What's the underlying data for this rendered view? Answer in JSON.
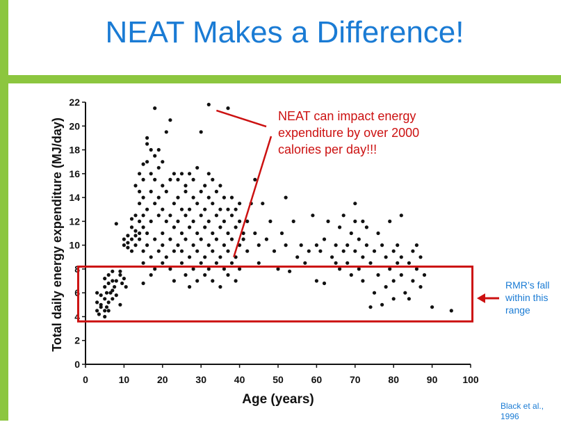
{
  "slide": {
    "title": "NEAT Makes a Difference!",
    "accent_color": "#8cc63f",
    "title_color": "#1a7bd4",
    "annotation_color": "#cc1111",
    "callout": "NEAT can impact energy expenditure by over 2000 calories per day!!!",
    "rmr_note": "RMR’s fall within this range",
    "citation": "Black et al., 1996",
    "arrow_icon": "left-arrow-icon"
  },
  "chart_data": {
    "type": "scatter",
    "title": "",
    "xlabel": "Age (years)",
    "ylabel": "Total daily energy expenditure (MJ/day)",
    "xlim": [
      0,
      100
    ],
    "ylim": [
      0,
      22
    ],
    "xticks": [
      0,
      10,
      20,
      30,
      40,
      50,
      60,
      70,
      80,
      90,
      100
    ],
    "yticks": [
      0,
      2,
      4,
      6,
      8,
      10,
      12,
      14,
      16,
      18,
      20,
      22
    ],
    "grid": false,
    "highlight_band": {
      "y_range": [
        3.6,
        8.2
      ],
      "x_range": [
        -1,
        101
      ],
      "label": "RMR range"
    },
    "points": [
      [
        3,
        4.5
      ],
      [
        3,
        5.2
      ],
      [
        3,
        6.0
      ],
      [
        3.5,
        4.2
      ],
      [
        4,
        5.0
      ],
      [
        4,
        5.8
      ],
      [
        4,
        4.8
      ],
      [
        5,
        4.0
      ],
      [
        5,
        4.5
      ],
      [
        5,
        5.5
      ],
      [
        5,
        6.5
      ],
      [
        5,
        7.2
      ],
      [
        5.5,
        4.8
      ],
      [
        5.5,
        6.0
      ],
      [
        6,
        5.2
      ],
      [
        6,
        6.8
      ],
      [
        6,
        7.5
      ],
      [
        6,
        4.5
      ],
      [
        6.5,
        6.0
      ],
      [
        7,
        5.5
      ],
      [
        7,
        7.0
      ],
      [
        7,
        7.8
      ],
      [
        7,
        6.2
      ],
      [
        7.5,
        6.5
      ],
      [
        8,
        7.0
      ],
      [
        8,
        5.8
      ],
      [
        8,
        11.8
      ],
      [
        9,
        5.0
      ],
      [
        9,
        7.5
      ],
      [
        9,
        7.8
      ],
      [
        9.5,
        6.8
      ],
      [
        10,
        7.2
      ],
      [
        10,
        10.5
      ],
      [
        10,
        10.0
      ],
      [
        10.5,
        6.5
      ],
      [
        11,
        10.2
      ],
      [
        11,
        10.8
      ],
      [
        11,
        9.8
      ],
      [
        12,
        10.5
      ],
      [
        12,
        11.5
      ],
      [
        12,
        12.2
      ],
      [
        12,
        9.5
      ],
      [
        13,
        10.8
      ],
      [
        13,
        11.2
      ],
      [
        13,
        12.5
      ],
      [
        13,
        15.0
      ],
      [
        13,
        10.0
      ],
      [
        14,
        11.0
      ],
      [
        14,
        12.0
      ],
      [
        14,
        13.5
      ],
      [
        14,
        14.5
      ],
      [
        14,
        16.0
      ],
      [
        14,
        10.5
      ],
      [
        15,
        11.5
      ],
      [
        15,
        12.5
      ],
      [
        15,
        14.0
      ],
      [
        15,
        15.5
      ],
      [
        15,
        16.8
      ],
      [
        15,
        9.5
      ],
      [
        15,
        8.5
      ],
      [
        15,
        6.8
      ],
      [
        16,
        13.0
      ],
      [
        16,
        17.0
      ],
      [
        16,
        18.5
      ],
      [
        16,
        19.0
      ],
      [
        16,
        11.0
      ],
      [
        16,
        10.0
      ],
      [
        17,
        12.0
      ],
      [
        17,
        14.5
      ],
      [
        17,
        16.0
      ],
      [
        17,
        18.0
      ],
      [
        17,
        9.0
      ],
      [
        17,
        7.5
      ],
      [
        18,
        13.5
      ],
      [
        18,
        15.5
      ],
      [
        18,
        17.5
      ],
      [
        18,
        21.5
      ],
      [
        18,
        10.5
      ],
      [
        18,
        8.0
      ],
      [
        19,
        12.5
      ],
      [
        19,
        14.0
      ],
      [
        19,
        16.5
      ],
      [
        19,
        18.0
      ],
      [
        19,
        9.5
      ],
      [
        20,
        11.0
      ],
      [
        20,
        13.0
      ],
      [
        20,
        15.0
      ],
      [
        20,
        17.0
      ],
      [
        20,
        8.5
      ],
      [
        20,
        10.0
      ],
      [
        21,
        12.0
      ],
      [
        21,
        14.5
      ],
      [
        21,
        19.5
      ],
      [
        21,
        9.0
      ],
      [
        22,
        12.5
      ],
      [
        22,
        15.5
      ],
      [
        22,
        20.5
      ],
      [
        22,
        10.5
      ],
      [
        22,
        8.0
      ],
      [
        23,
        11.5
      ],
      [
        23,
        13.5
      ],
      [
        23,
        16.0
      ],
      [
        23,
        9.5
      ],
      [
        23,
        7.0
      ],
      [
        24,
        12.0
      ],
      [
        24,
        14.0
      ],
      [
        24,
        15.5
      ],
      [
        24,
        10.0
      ],
      [
        25,
        11.0
      ],
      [
        25,
        13.0
      ],
      [
        25,
        16.0
      ],
      [
        25,
        8.5
      ],
      [
        25,
        9.5
      ],
      [
        26,
        12.5
      ],
      [
        26,
        14.5
      ],
      [
        26,
        15.0
      ],
      [
        26,
        10.5
      ],
      [
        26,
        7.5
      ],
      [
        27,
        11.5
      ],
      [
        27,
        13.0
      ],
      [
        27,
        16.0
      ],
      [
        27,
        9.0
      ],
      [
        27,
        6.5
      ],
      [
        28,
        12.0
      ],
      [
        28,
        14.0
      ],
      [
        28,
        15.5
      ],
      [
        28,
        10.0
      ],
      [
        28,
        8.0
      ],
      [
        29,
        11.0
      ],
      [
        29,
        13.5
      ],
      [
        29,
        16.5
      ],
      [
        29,
        9.5
      ],
      [
        29,
        7.0
      ],
      [
        30,
        12.5
      ],
      [
        30,
        14.5
      ],
      [
        30,
        19.5
      ],
      [
        30,
        10.5
      ],
      [
        30,
        8.5
      ],
      [
        31,
        11.5
      ],
      [
        31,
        13.0
      ],
      [
        31,
        15.0
      ],
      [
        31,
        9.0
      ],
      [
        31,
        7.5
      ],
      [
        32,
        12.0
      ],
      [
        32,
        14.0
      ],
      [
        32,
        16.0
      ],
      [
        32,
        10.0
      ],
      [
        32,
        8.0
      ],
      [
        32,
        21.8
      ],
      [
        33,
        11.0
      ],
      [
        33,
        13.5
      ],
      [
        33,
        15.5
      ],
      [
        33,
        9.5
      ],
      [
        33,
        7.0
      ],
      [
        34,
        10.5
      ],
      [
        34,
        12.5
      ],
      [
        34,
        14.5
      ],
      [
        34,
        8.5
      ],
      [
        35,
        11.5
      ],
      [
        35,
        13.0
      ],
      [
        35,
        15.0
      ],
      [
        35,
        9.0
      ],
      [
        35,
        6.5
      ],
      [
        36,
        10.0
      ],
      [
        36,
        12.0
      ],
      [
        36,
        14.0
      ],
      [
        36,
        8.0
      ],
      [
        37,
        11.0
      ],
      [
        37,
        13.0
      ],
      [
        37,
        21.5
      ],
      [
        37,
        9.5
      ],
      [
        37,
        7.5
      ],
      [
        38,
        10.5
      ],
      [
        38,
        12.5
      ],
      [
        38,
        14.0
      ],
      [
        38,
        8.5
      ],
      [
        39,
        11.5
      ],
      [
        39,
        13.0
      ],
      [
        39,
        9.0
      ],
      [
        39,
        7.0
      ],
      [
        40,
        10.0
      ],
      [
        40,
        12.0
      ],
      [
        40,
        13.5
      ],
      [
        40,
        8.0
      ],
      [
        41,
        11.0
      ],
      [
        41,
        10.5
      ],
      [
        42,
        9.5
      ],
      [
        42,
        12.0
      ],
      [
        43,
        13.5
      ],
      [
        44,
        11.0
      ],
      [
        44,
        15.5
      ],
      [
        45,
        10.0
      ],
      [
        45,
        8.5
      ],
      [
        46,
        13.5
      ],
      [
        47,
        10.5
      ],
      [
        48,
        12.0
      ],
      [
        49,
        9.5
      ],
      [
        50,
        8.0
      ],
      [
        51,
        11.0
      ],
      [
        52,
        14.0
      ],
      [
        52,
        10.0
      ],
      [
        53,
        7.8
      ],
      [
        54,
        12.0
      ],
      [
        55,
        9.0
      ],
      [
        56,
        10.0
      ],
      [
        57,
        8.5
      ],
      [
        58,
        9.5
      ],
      [
        59,
        12.5
      ],
      [
        60,
        10.0
      ],
      [
        60,
        7.0
      ],
      [
        61,
        9.5
      ],
      [
        62,
        10.5
      ],
      [
        62,
        6.8
      ],
      [
        63,
        12.0
      ],
      [
        64,
        9.0
      ],
      [
        65,
        8.5
      ],
      [
        65,
        10.0
      ],
      [
        66,
        11.5
      ],
      [
        66,
        8.0
      ],
      [
        67,
        12.5
      ],
      [
        67,
        9.5
      ],
      [
        68,
        10.0
      ],
      [
        68,
        8.5
      ],
      [
        69,
        11.0
      ],
      [
        69,
        7.5
      ],
      [
        70,
        13.5
      ],
      [
        70,
        12.0
      ],
      [
        70,
        9.5
      ],
      [
        71,
        10.5
      ],
      [
        71,
        8.0
      ],
      [
        72,
        12.0
      ],
      [
        72,
        9.0
      ],
      [
        72,
        7.0
      ],
      [
        73,
        10.0
      ],
      [
        73,
        11.5
      ],
      [
        74,
        8.5
      ],
      [
        74,
        4.8
      ],
      [
        75,
        9.5
      ],
      [
        75,
        6.0
      ],
      [
        76,
        11.0
      ],
      [
        76,
        7.5
      ],
      [
        77,
        10.0
      ],
      [
        77,
        5.0
      ],
      [
        78,
        9.0
      ],
      [
        78,
        6.5
      ],
      [
        79,
        12.0
      ],
      [
        79,
        8.0
      ],
      [
        80,
        9.5
      ],
      [
        80,
        7.0
      ],
      [
        80,
        5.5
      ],
      [
        81,
        10.0
      ],
      [
        81,
        8.5
      ],
      [
        82,
        9.0
      ],
      [
        82,
        7.5
      ],
      [
        82,
        12.5
      ],
      [
        83,
        6.0
      ],
      [
        84,
        8.5
      ],
      [
        84,
        5.5
      ],
      [
        85,
        9.5
      ],
      [
        85,
        7.0
      ],
      [
        86,
        10.0
      ],
      [
        86,
        8.0
      ],
      [
        87,
        9.0
      ],
      [
        87,
        6.5
      ],
      [
        88,
        7.5
      ],
      [
        90,
        4.8
      ],
      [
        95,
        4.5
      ]
    ]
  }
}
